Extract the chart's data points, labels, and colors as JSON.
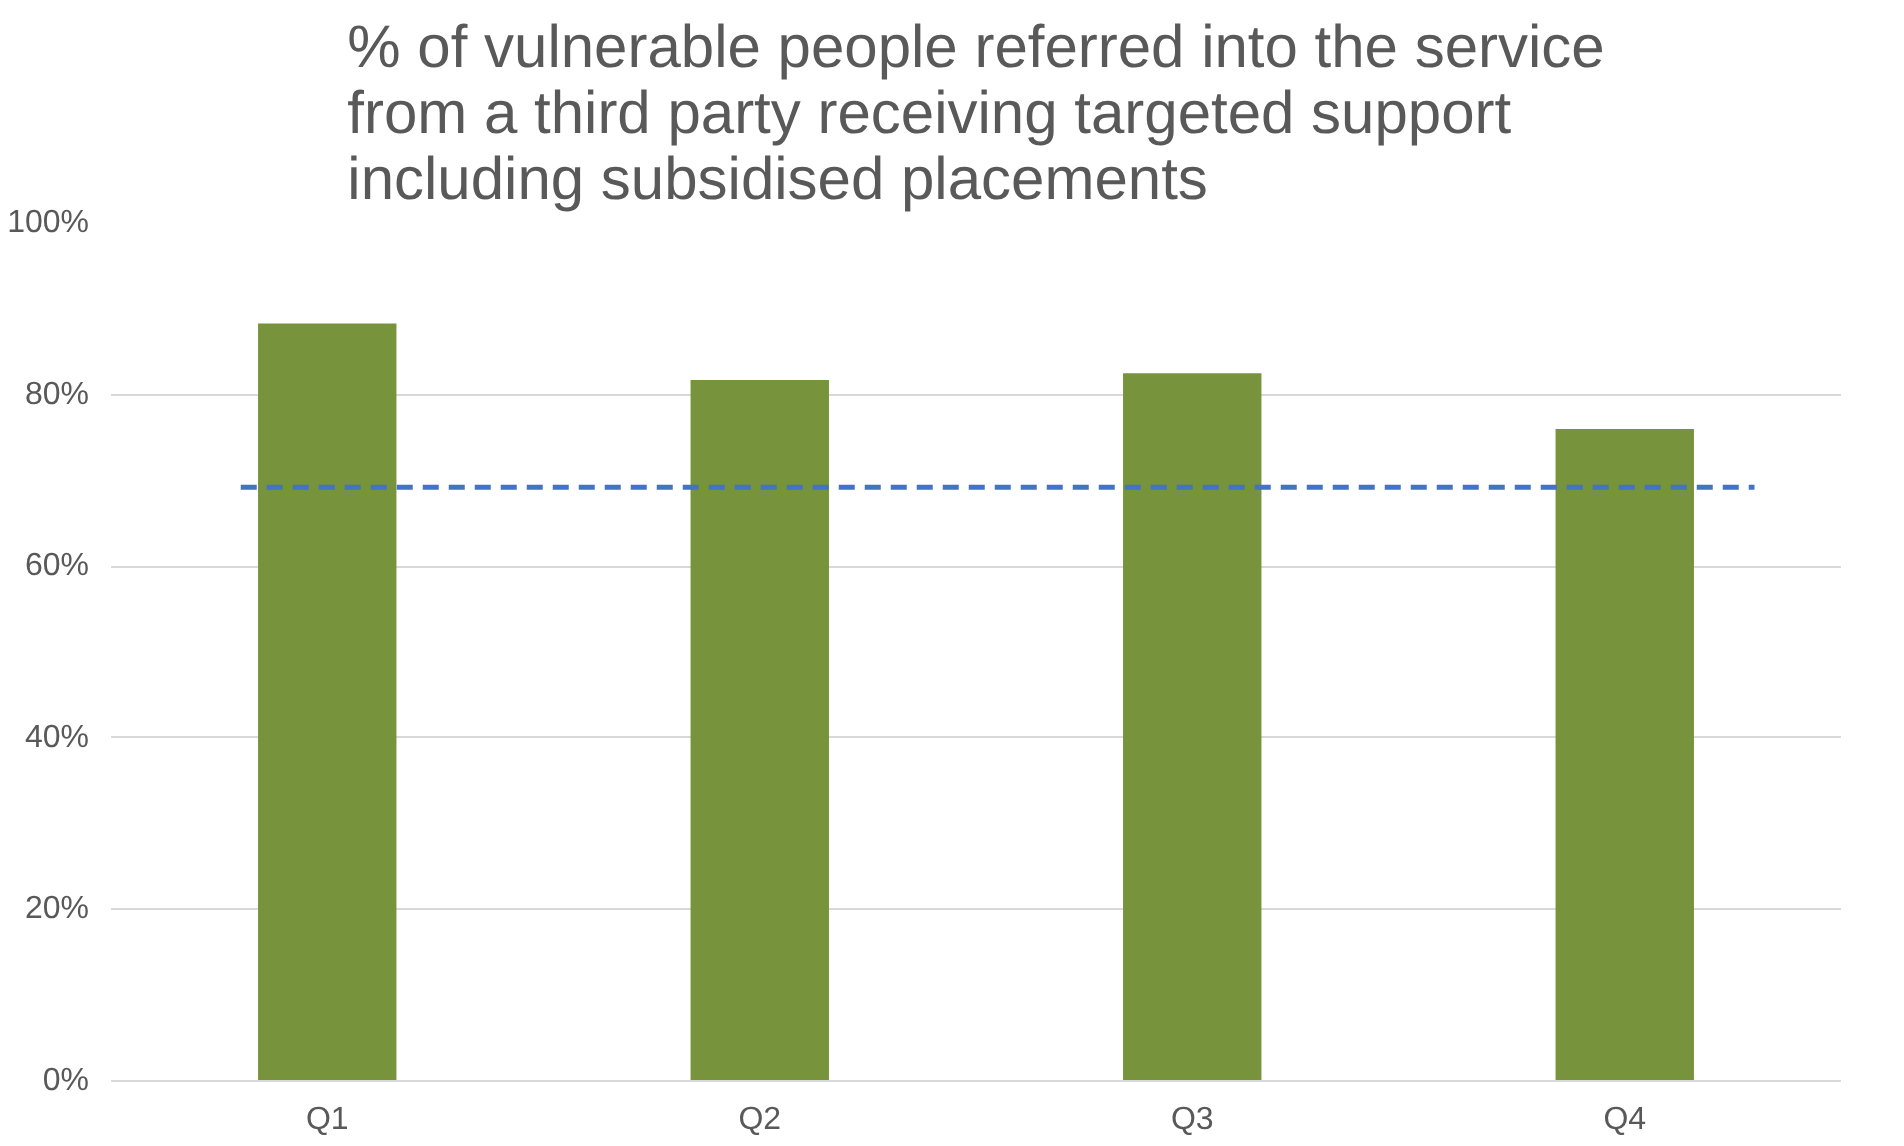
{
  "chart_data": {
    "type": "bar",
    "title": "% of vulnerable people referred into the service\nfrom a third party receiving targeted support\nincluding subsidised placements",
    "categories": [
      "Q1",
      "Q2",
      "Q3",
      "Q4"
    ],
    "values": [
      88.3,
      81.7,
      82.5,
      76
    ],
    "color": "#77933c",
    "ylim": [
      0,
      100
    ],
    "yticks": [
      {
        "value": 0,
        "label": "0%"
      },
      {
        "value": 20,
        "label": "20%"
      },
      {
        "value": 40,
        "label": "40%"
      },
      {
        "value": 60,
        "label": "60%"
      },
      {
        "value": 80,
        "label": "80%"
      },
      {
        "value": 100,
        "label": "100%"
      }
    ],
    "grid": "y",
    "ref_lines": [
      {
        "axis": "y",
        "value": 69.2,
        "color": "#4472c4",
        "line_style": "dashed"
      }
    ]
  }
}
